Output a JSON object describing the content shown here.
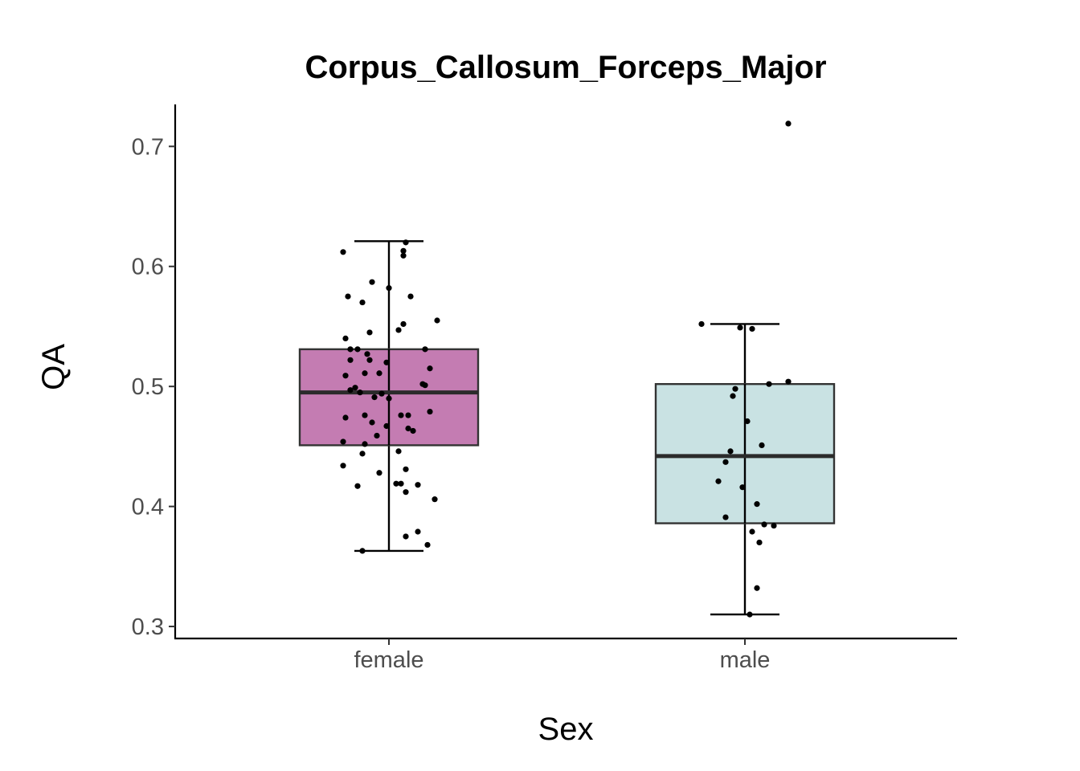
{
  "chart_data": {
    "type": "box",
    "title": "Corpus_Callosum_Forceps_Major",
    "xlabel": "Sex",
    "ylabel": "QA",
    "categories": [
      "female",
      "male"
    ],
    "ylim": [
      0.29,
      0.735
    ],
    "yticks": [
      0.3,
      0.4,
      0.5,
      0.6,
      0.7
    ],
    "ytick_labels": [
      "0.3",
      "0.4",
      "0.5",
      "0.6",
      "0.7"
    ],
    "grid": false,
    "legend": "none",
    "boxes": [
      {
        "category": "female",
        "color": "#c47cb2",
        "whisker_low": 0.363,
        "q1": 0.451,
        "median": 0.495,
        "q3": 0.531,
        "whisker_high": 0.621,
        "points": [
          {
            "x": -0.19,
            "y": 0.612
          },
          {
            "x": 0.07,
            "y": 0.62
          },
          {
            "x": 0.06,
            "y": 0.613
          },
          {
            "x": 0.06,
            "y": 0.609
          },
          {
            "x": -0.07,
            "y": 0.587
          },
          {
            "x": 0.0,
            "y": 0.582
          },
          {
            "x": -0.17,
            "y": 0.575
          },
          {
            "x": 0.09,
            "y": 0.575
          },
          {
            "x": -0.11,
            "y": 0.57
          },
          {
            "x": 0.2,
            "y": 0.555
          },
          {
            "x": 0.06,
            "y": 0.552
          },
          {
            "x": 0.04,
            "y": 0.547
          },
          {
            "x": -0.08,
            "y": 0.545
          },
          {
            "x": -0.18,
            "y": 0.54
          },
          {
            "x": -0.16,
            "y": 0.531
          },
          {
            "x": -0.13,
            "y": 0.531
          },
          {
            "x": 0.15,
            "y": 0.531
          },
          {
            "x": -0.09,
            "y": 0.527
          },
          {
            "x": -0.16,
            "y": 0.522
          },
          {
            "x": -0.08,
            "y": 0.522
          },
          {
            "x": -0.01,
            "y": 0.52
          },
          {
            "x": 0.17,
            "y": 0.515
          },
          {
            "x": -0.04,
            "y": 0.511
          },
          {
            "x": -0.1,
            "y": 0.511
          },
          {
            "x": -0.18,
            "y": 0.509
          },
          {
            "x": 0.14,
            "y": 0.502
          },
          {
            "x": 0.15,
            "y": 0.501
          },
          {
            "x": -0.14,
            "y": 0.499
          },
          {
            "x": -0.16,
            "y": 0.497
          },
          {
            "x": -0.12,
            "y": 0.495
          },
          {
            "x": -0.03,
            "y": 0.494
          },
          {
            "x": -0.06,
            "y": 0.491
          },
          {
            "x": 0.0,
            "y": 0.49
          },
          {
            "x": 0.17,
            "y": 0.479
          },
          {
            "x": -0.1,
            "y": 0.476
          },
          {
            "x": 0.05,
            "y": 0.476
          },
          {
            "x": 0.08,
            "y": 0.476
          },
          {
            "x": -0.18,
            "y": 0.474
          },
          {
            "x": -0.07,
            "y": 0.47
          },
          {
            "x": -0.01,
            "y": 0.467
          },
          {
            "x": 0.08,
            "y": 0.465
          },
          {
            "x": 0.1,
            "y": 0.463
          },
          {
            "x": -0.05,
            "y": 0.459
          },
          {
            "x": -0.19,
            "y": 0.454
          },
          {
            "x": -0.1,
            "y": 0.452
          },
          {
            "x": 0.04,
            "y": 0.446
          },
          {
            "x": -0.11,
            "y": 0.444
          },
          {
            "x": -0.19,
            "y": 0.434
          },
          {
            "x": 0.07,
            "y": 0.431
          },
          {
            "x": -0.04,
            "y": 0.428
          },
          {
            "x": 0.03,
            "y": 0.419
          },
          {
            "x": 0.05,
            "y": 0.419
          },
          {
            "x": -0.13,
            "y": 0.417
          },
          {
            "x": 0.12,
            "y": 0.418
          },
          {
            "x": 0.07,
            "y": 0.412
          },
          {
            "x": 0.19,
            "y": 0.406
          },
          {
            "x": 0.12,
            "y": 0.379
          },
          {
            "x": 0.07,
            "y": 0.375
          },
          {
            "x": 0.16,
            "y": 0.368
          },
          {
            "x": -0.11,
            "y": 0.363
          }
        ]
      },
      {
        "category": "male",
        "color": "#c9e2e3",
        "whisker_low": 0.31,
        "q1": 0.386,
        "median": 0.442,
        "q3": 0.502,
        "whisker_high": 0.552,
        "points": [
          {
            "x": 0.18,
            "y": 0.719
          },
          {
            "x": -0.18,
            "y": 0.552
          },
          {
            "x": -0.02,
            "y": 0.549
          },
          {
            "x": 0.03,
            "y": 0.548
          },
          {
            "x": 0.18,
            "y": 0.504
          },
          {
            "x": 0.1,
            "y": 0.502
          },
          {
            "x": -0.04,
            "y": 0.498
          },
          {
            "x": -0.05,
            "y": 0.492
          },
          {
            "x": 0.01,
            "y": 0.471
          },
          {
            "x": 0.07,
            "y": 0.451
          },
          {
            "x": -0.06,
            "y": 0.446
          },
          {
            "x": -0.08,
            "y": 0.437
          },
          {
            "x": -0.11,
            "y": 0.421
          },
          {
            "x": -0.01,
            "y": 0.416
          },
          {
            "x": 0.05,
            "y": 0.402
          },
          {
            "x": -0.08,
            "y": 0.391
          },
          {
            "x": 0.08,
            "y": 0.385
          },
          {
            "x": 0.12,
            "y": 0.384
          },
          {
            "x": 0.03,
            "y": 0.379
          },
          {
            "x": 0.06,
            "y": 0.37
          },
          {
            "x": 0.05,
            "y": 0.332
          },
          {
            "x": 0.02,
            "y": 0.31
          }
        ]
      }
    ]
  }
}
